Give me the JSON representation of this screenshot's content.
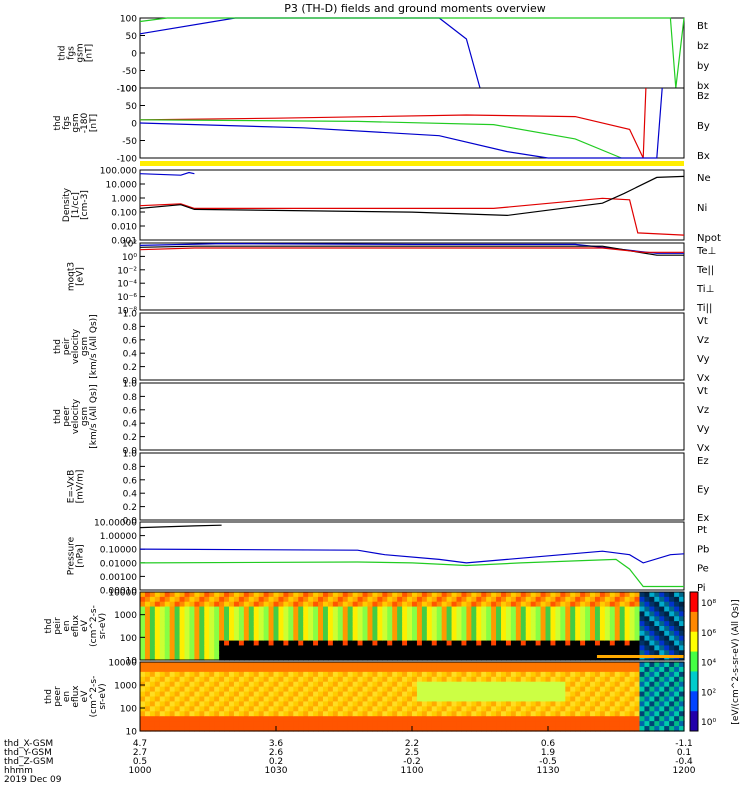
{
  "title": "P3 (TH-D) fields and ground moments overview",
  "colors": {
    "black": "#000000",
    "red": "#e00000",
    "green": "#22cc22",
    "blue": "#0000cc",
    "yellow": "#ffee00"
  },
  "chart_data": {
    "type": "line",
    "x": {
      "start": "1000",
      "end": "1200"
    },
    "panels": [
      {
        "id": "fgs",
        "ylabel": [
          "thd",
          "fgs",
          "gsm",
          "[nT]"
        ],
        "ylim": [
          -100,
          100
        ],
        "yticks": [
          "100",
          "50",
          "0",
          "-50",
          "-100"
        ],
        "legend": [
          {
            "name": "Bt",
            "color": "black"
          },
          {
            "name": "bz",
            "color": "red"
          },
          {
            "name": "by",
            "color": "green"
          },
          {
            "name": "bx",
            "color": "blue"
          }
        ],
        "series": [
          {
            "name": "bx",
            "color": "blue",
            "points": [
              [
                1000,
                55
              ],
              [
                1035,
                100
              ],
              [
                1110,
                100
              ],
              [
                1120,
                40
              ],
              [
                1125,
                -100
              ]
            ]
          },
          {
            "name": "by",
            "color": "green",
            "points": [
              [
                1000,
                90
              ],
              [
                1010,
                100
              ],
              [
                1195,
                100
              ],
              [
                1197,
                -100
              ],
              [
                1200,
                100
              ]
            ]
          }
        ]
      },
      {
        "id": "fgsdsl",
        "ylabel": [
          "thd",
          "fgs",
          "gsm",
          "-180",
          "[nT]"
        ],
        "ylim": [
          -120,
          100
        ],
        "yticks": [
          "100",
          "50",
          "0",
          "-50",
          "-100"
        ],
        "legend": [
          {
            "name": "Bz",
            "color": "red"
          },
          {
            "name": "By",
            "color": "green"
          },
          {
            "name": "Bx",
            "color": "blue"
          }
        ],
        "series": [
          {
            "name": "Bz",
            "color": "red",
            "points": [
              [
                1000,
                0
              ],
              [
                1050,
                5
              ],
              [
                1120,
                15
              ],
              [
                1160,
                10
              ],
              [
                1180,
                -30
              ],
              [
                1185,
                -120
              ],
              [
                1186,
                100
              ]
            ]
          },
          {
            "name": "By",
            "color": "green",
            "points": [
              [
                1000,
                0
              ],
              [
                1080,
                -5
              ],
              [
                1130,
                -15
              ],
              [
                1160,
                -60
              ],
              [
                1177,
                -120
              ]
            ]
          },
          {
            "name": "Bx",
            "color": "blue",
            "points": [
              [
                1000,
                -10
              ],
              [
                1060,
                -25
              ],
              [
                1110,
                -50
              ],
              [
                1135,
                -100
              ],
              [
                1150,
                -120
              ],
              [
                1190,
                -120
              ],
              [
                1192,
                100
              ]
            ]
          }
        ]
      },
      {
        "id": "density",
        "ylabel": [
          "Density",
          "[1/cc]",
          "[cm-3]"
        ],
        "ylim": [
          0.0008,
          400
        ],
        "log": true,
        "yticks": [
          "100.000",
          "10.000",
          "1.000",
          "0.100",
          "0.010",
          "0.001"
        ],
        "legend": [
          {
            "name": "Ne",
            "color": "red"
          },
          {
            "name": "Ni",
            "color": "black"
          },
          {
            "name": "Npot",
            "color": "blue"
          }
        ],
        "series": [
          {
            "name": "Npot",
            "color": "blue",
            "points": [
              [
                1000,
                200
              ],
              [
                1015,
                150
              ],
              [
                1018,
                250
              ],
              [
                1020,
                200
              ]
            ]
          },
          {
            "name": "Ne",
            "color": "red",
            "points": [
              [
                1000,
                0.5
              ],
              [
                1015,
                0.7
              ],
              [
                1020,
                0.3
              ],
              [
                1100,
                0.3
              ],
              [
                1130,
                0.3
              ],
              [
                1170,
                2
              ],
              [
                1180,
                1.5
              ],
              [
                1183,
                0.003
              ],
              [
                1200,
                0.002
              ]
            ]
          },
          {
            "name": "Ni",
            "color": "black",
            "points": [
              [
                1000,
                0.3
              ],
              [
                1015,
                0.6
              ],
              [
                1020,
                0.25
              ],
              [
                1100,
                0.15
              ],
              [
                1135,
                0.08
              ],
              [
                1170,
                0.8
              ],
              [
                1178,
                5
              ],
              [
                1190,
                100
              ],
              [
                1200,
                120
              ]
            ]
          }
        ]
      },
      {
        "id": "temp",
        "ylabel": [
          "moqt3",
          "[eV]"
        ],
        "ylim": [
          1e-09,
          100.0
        ],
        "log": true,
        "yticks": [
          "10²",
          "10⁰",
          "10⁻²",
          "10⁻⁴",
          "10⁻⁶",
          "10⁻⁸"
        ],
        "legend": [
          {
            "name": "Te⊥",
            "color": "red"
          },
          {
            "name": "Te||",
            "color": "black"
          },
          {
            "name": "Ti⊥",
            "color": "red"
          },
          {
            "name": "Ti||",
            "color": "green"
          }
        ],
        "series": [
          {
            "name": "Ti||",
            "color": "blue",
            "points": [
              [
                1000,
                40
              ],
              [
                1030,
                80
              ],
              [
                1100,
                60
              ],
              [
                1160,
                60
              ],
              [
                1190,
                2
              ],
              [
                1200,
                2
              ]
            ]
          },
          {
            "name": "Te||",
            "color": "black",
            "points": [
              [
                1000,
                20
              ],
              [
                1020,
                30
              ],
              [
                1170,
                30
              ],
              [
                1190,
                1
              ],
              [
                1200,
                1
              ]
            ]
          },
          {
            "name": "Te⊥",
            "color": "red",
            "points": [
              [
                1000,
                8
              ],
              [
                1020,
                15
              ],
              [
                1170,
                15
              ],
              [
                1185,
                3
              ],
              [
                1200,
                3
              ]
            ]
          }
        ]
      },
      {
        "id": "peir",
        "ylabel": [
          "thd",
          "peir",
          "velocity",
          "gsm",
          "[km/s (All Qs)]"
        ],
        "ylim": [
          0,
          1
        ],
        "yticks": [
          "1.0",
          "0.8",
          "0.6",
          "0.4",
          "0.2",
          "0.0"
        ],
        "legend": [
          {
            "name": "Vt",
            "color": "black"
          },
          {
            "name": "Vz",
            "color": "red"
          },
          {
            "name": "Vy",
            "color": "green"
          },
          {
            "name": "Vx",
            "color": "blue"
          }
        ],
        "series": []
      },
      {
        "id": "peer",
        "ylabel": [
          "thd",
          "peer",
          "velocity",
          "gsm",
          "[km/s (All Qs)]"
        ],
        "ylim": [
          0,
          1
        ],
        "yticks": [
          "1.0",
          "0.8",
          "0.6",
          "0.4",
          "0.2",
          "0.0"
        ],
        "legend": [
          {
            "name": "Vt",
            "color": "black"
          },
          {
            "name": "Vz",
            "color": "red"
          },
          {
            "name": "Vy",
            "color": "green"
          },
          {
            "name": "Vx",
            "color": "blue"
          }
        ],
        "series": []
      },
      {
        "id": "efield",
        "ylabel": [
          "E=-VxB",
          "[mV/m]"
        ],
        "ylim": [
          0,
          1
        ],
        "yticks": [
          "1.0",
          "0.8",
          "0.6",
          "0.4",
          "0.2",
          "0.0"
        ],
        "legend": [
          {
            "name": "Ez",
            "color": "red"
          },
          {
            "name": "Ey",
            "color": "green"
          },
          {
            "name": "Ex",
            "color": "blue"
          }
        ],
        "series": []
      },
      {
        "id": "pressure",
        "ylabel": [
          "Pressure",
          "[nPa]"
        ],
        "ylim": [
          5e-05,
          30
        ],
        "log": true,
        "yticks": [
          "10.00000",
          "1.00000",
          "0.10000",
          "0.01000",
          "0.00100",
          "0.00010"
        ],
        "legend": [
          {
            "name": "Pt",
            "color": "black"
          },
          {
            "name": "Pb",
            "color": "red"
          },
          {
            "name": "Pe",
            "color": "green"
          },
          {
            "name": "Pi",
            "color": "blue"
          }
        ],
        "series": [
          {
            "name": "Pt",
            "color": "black",
            "points": [
              [
                1000,
                10
              ],
              [
                1020,
                14
              ],
              [
                1030,
                16
              ]
            ]
          },
          {
            "name": "Pi",
            "color": "blue",
            "points": [
              [
                1000,
                0.15
              ],
              [
                1080,
                0.12
              ],
              [
                1090,
                0.05
              ],
              [
                1110,
                0.02
              ],
              [
                1120,
                0.01
              ],
              [
                1135,
                0.02
              ],
              [
                1170,
                0.1
              ],
              [
                1180,
                0.05
              ],
              [
                1185,
                0.01
              ],
              [
                1195,
                0.05
              ],
              [
                1200,
                0.06
              ]
            ]
          },
          {
            "name": "Pe",
            "color": "green",
            "points": [
              [
                1000,
                0.01
              ],
              [
                1080,
                0.012
              ],
              [
                1100,
                0.01
              ],
              [
                1120,
                0.006
              ],
              [
                1140,
                0.01
              ],
              [
                1175,
                0.02
              ],
              [
                1180,
                0.003
              ],
              [
                1185,
                0.0001
              ],
              [
                1200,
                0.0001
              ]
            ]
          }
        ]
      },
      {
        "id": "peir_en",
        "type": "heatmap",
        "ylabel": [
          "thd",
          "peir",
          "en",
          "eflux",
          "eV",
          "(cm^2-s-",
          "sr-eV)"
        ],
        "yticks": [
          "10000",
          "1000",
          "100",
          "10"
        ]
      },
      {
        "id": "peer_en",
        "type": "heatmap",
        "ylabel": [
          "thd",
          "peer",
          "en",
          "eflux",
          "eV",
          "(cm^2-s-",
          "sr-eV)"
        ],
        "yticks": [
          "10000",
          "1000",
          "100",
          "10"
        ]
      }
    ],
    "colorbar": {
      "label": "[eV/(cm^2-s-sr-eV) (All Qs)]",
      "ticks": [
        "10⁸",
        "10⁶",
        "10⁴",
        "10²",
        "10⁰"
      ]
    },
    "xaxis_rows": [
      {
        "label": "thd_X-GSM",
        "values": [
          "4.7",
          "3.6",
          "2.2",
          "0.6",
          "-1.1"
        ]
      },
      {
        "label": "thd_Y-GSM",
        "values": [
          "2.7",
          "2.6",
          "2.5",
          "1.9",
          "0.1"
        ]
      },
      {
        "label": "thd_Z-GSM",
        "values": [
          "0.5",
          "0.2",
          "-0.2",
          "-0.5",
          "-0.4"
        ]
      },
      {
        "label": "hhmm",
        "values": [
          "1000",
          "1030",
          "1100",
          "1130",
          "1200"
        ]
      }
    ],
    "date": "2019 Dec 09"
  }
}
